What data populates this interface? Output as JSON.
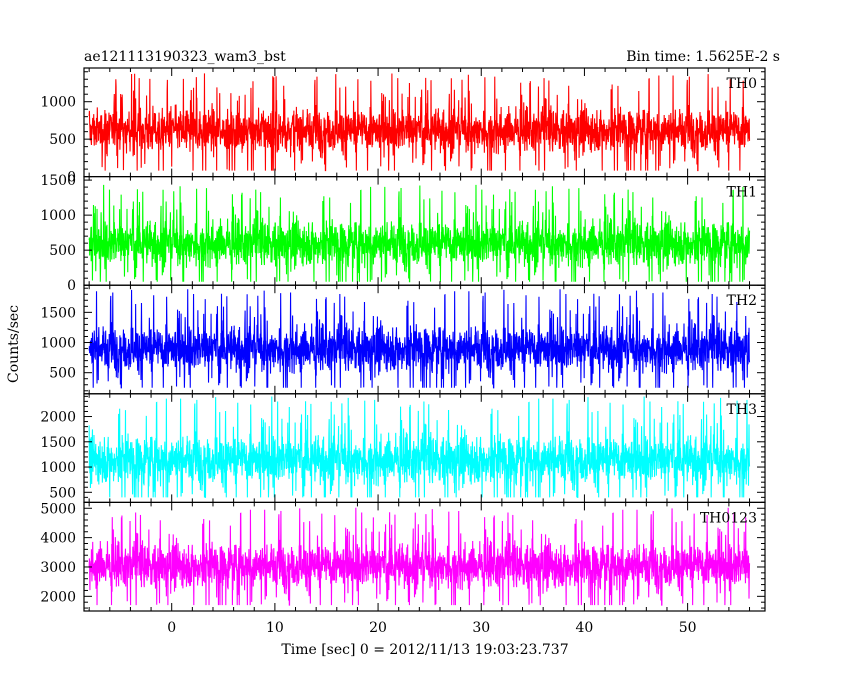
{
  "chart_data": {
    "type": "line",
    "title": "ae121113190323_wam3_bst",
    "subtitle": "Bin time: 1.5625E-2 s",
    "xlabel": "Time [sec] 0 = 2012/11/13 19:03:23.737",
    "ylabel": "Counts/sec",
    "xlim": [
      -8.5,
      57.5
    ],
    "xticks": [
      0,
      10,
      20,
      30,
      40,
      50
    ],
    "x_data_range": [
      -8,
      56
    ],
    "bin_time": 0.015625,
    "grid": false,
    "panels": [
      {
        "name": "TH0",
        "color": "#ff0000",
        "ylim": [
          0,
          1450
        ],
        "yticks": [
          0,
          500,
          1000
        ],
        "mean": 620,
        "spread": 200,
        "min": 80,
        "max": 1420
      },
      {
        "name": "TH1",
        "color": "#00ff00",
        "ylim": [
          0,
          1550
        ],
        "yticks": [
          0,
          500,
          1000,
          1500
        ],
        "mean": 600,
        "spread": 220,
        "min": 50,
        "max": 1500
      },
      {
        "name": "TH2",
        "color": "#0000ff",
        "ylim": [
          150,
          1950
        ],
        "yticks": [
          500,
          1000,
          1500
        ],
        "mean": 900,
        "spread": 260,
        "min": 250,
        "max": 1950
      },
      {
        "name": "TH3",
        "color": "#00ffff",
        "ylim": [
          300,
          2450
        ],
        "yticks": [
          500,
          1000,
          1500,
          2000
        ],
        "mean": 1150,
        "spread": 330,
        "min": 400,
        "max": 2450
      },
      {
        "name": "TH0123",
        "color": "#ff00ff",
        "ylim": [
          1500,
          5200
        ],
        "yticks": [
          2000,
          3000,
          4000,
          5000
        ],
        "mean": 3050,
        "spread": 520,
        "min": 1700,
        "max": 5200
      }
    ]
  }
}
